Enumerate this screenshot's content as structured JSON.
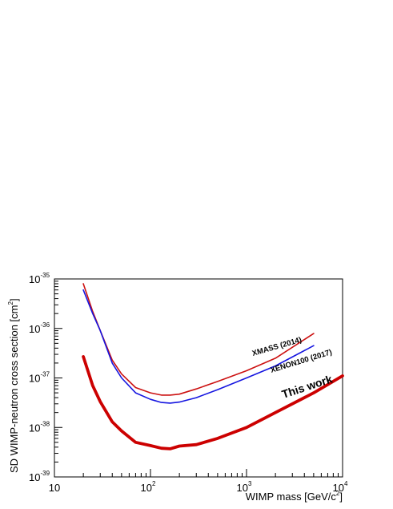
{
  "chart_data": {
    "type": "line",
    "xscale": "log",
    "yscale": "log",
    "xlim": [
      10,
      10000
    ],
    "ylim": [
      1e-39,
      1e-35
    ],
    "xlabel": "WIMP mass [GeV/c",
    "xlabel_sup": "2",
    "xlabel_end": "]",
    "ylabel": "SD WIMP-neutron cross section [cm",
    "ylabel_sup": "2",
    "ylabel_end": "]",
    "x_ticks": [
      {
        "base": "10",
        "exp": ""
      },
      {
        "base": "10",
        "exp": "2"
      },
      {
        "base": "10",
        "exp": "3"
      },
      {
        "base": "10",
        "exp": "4"
      }
    ],
    "y_ticks": [
      {
        "base": "10",
        "exp": "-39"
      },
      {
        "base": "10",
        "exp": "-38"
      },
      {
        "base": "10",
        "exp": "-37"
      },
      {
        "base": "10",
        "exp": "-36"
      },
      {
        "base": "10",
        "exp": "-35"
      }
    ],
    "series": [
      {
        "name": "XMASS (2014)",
        "color": "#cc1111",
        "x": [
          20,
          25,
          30,
          40,
          50,
          70,
          100,
          130,
          160,
          200,
          300,
          500,
          1000,
          2000,
          5000
        ],
        "y": [
          8e-36,
          2.2e-36,
          9e-37,
          2.3e-37,
          1.2e-37,
          6.4e-38,
          5e-38,
          4.5e-38,
          4.5e-38,
          4.7e-38,
          6e-38,
          8.5e-38,
          1.4e-37,
          2.5e-37,
          7.9e-37
        ]
      },
      {
        "name": "XENON100 (2017)",
        "color": "#1515e0",
        "x": [
          20,
          25,
          30,
          40,
          50,
          70,
          100,
          130,
          160,
          200,
          300,
          500,
          1000,
          2000,
          5000
        ],
        "y": [
          6e-36,
          2e-36,
          9e-37,
          2e-37,
          1e-37,
          5e-38,
          3.7e-38,
          3.2e-38,
          3.1e-38,
          3.25e-38,
          4e-38,
          5.8e-38,
          1e-37,
          1.75e-37,
          4.5e-37
        ]
      },
      {
        "name": "This work",
        "color": "#cc0000",
        "x": [
          20,
          25,
          30,
          40,
          50,
          70,
          100,
          130,
          160,
          200,
          300,
          500,
          1000,
          2000,
          5000,
          10000
        ],
        "y": [
          2.7e-37,
          7e-38,
          3.3e-38,
          1.3e-38,
          8.5e-39,
          5e-39,
          4.3e-39,
          3.8e-39,
          3.7e-39,
          4.2e-39,
          4.5e-39,
          6e-39,
          1e-38,
          2e-38,
          5e-38,
          1.1e-37
        ]
      }
    ]
  }
}
